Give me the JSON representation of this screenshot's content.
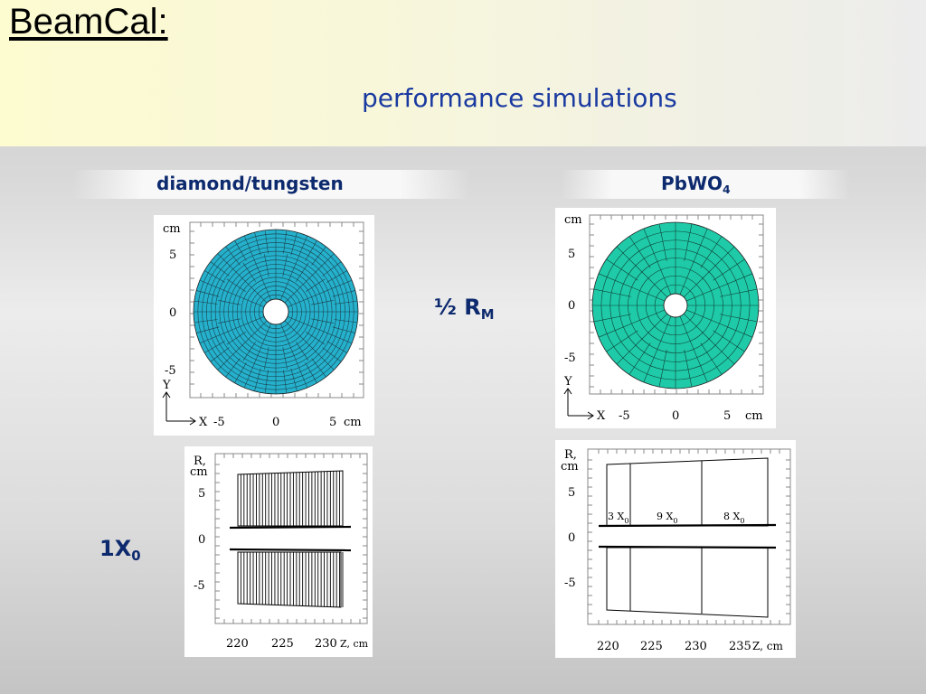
{
  "slide": {
    "title": "BeamCal:",
    "subtitle": "performance simulations",
    "col_left_label": "diamond/tungsten",
    "col_right_label_main": "PbWO",
    "col_right_label_sub": "4",
    "half_rm_main": "½ R",
    "half_rm_sub": "M",
    "x0_main": "1X",
    "x0_sub": "0"
  },
  "plots": {
    "front_left": {
      "y_unit": "cm",
      "y_ticks": [
        "5",
        "0",
        "-5"
      ],
      "y_axis": "Y",
      "x_axis": "X",
      "x_ticks": [
        "-5",
        "0",
        "5"
      ],
      "x_unit": "cm",
      "fill_color": "#25b0cc"
    },
    "front_right": {
      "y_unit": "cm",
      "y_ticks": [
        "5",
        "0",
        "-5"
      ],
      "y_axis": "Y",
      "x_axis": "X",
      "x_ticks": [
        "-5",
        "0",
        "5"
      ],
      "x_unit": "cm",
      "fill_color": "#1fcaa8"
    },
    "side_left": {
      "y_unit_1": "R,",
      "y_unit_2": "cm",
      "y_ticks": [
        "5",
        "0",
        "-5"
      ],
      "x_ticks": [
        "220",
        "225",
        "230"
      ],
      "x_unit": "Z, cm"
    },
    "side_right": {
      "y_unit_1": "R,",
      "y_unit_2": "cm",
      "y_ticks": [
        "5",
        "0",
        "-5"
      ],
      "x_ticks": [
        "220",
        "225",
        "230",
        "235"
      ],
      "x_unit": "Z, cm",
      "seg1_main": "3 X",
      "seg1_sub": "0",
      "seg2_main": "9 X",
      "seg2_sub": "0",
      "seg3_main": "8 X",
      "seg3_sub": "0"
    }
  }
}
